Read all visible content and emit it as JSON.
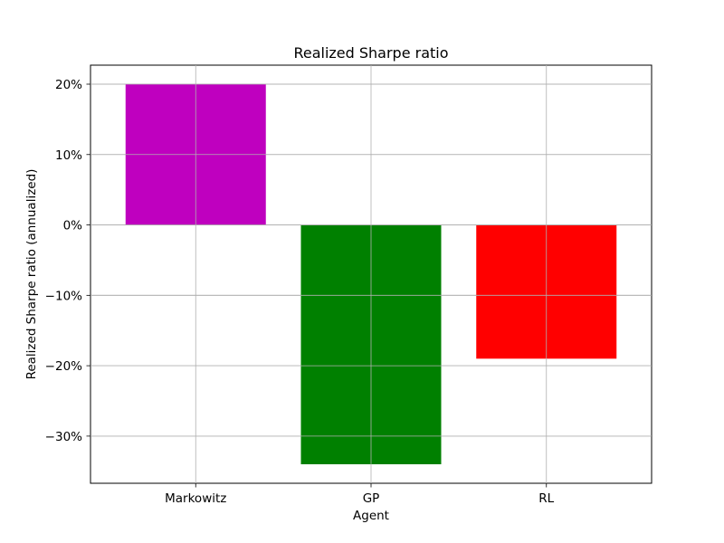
{
  "chart_data": {
    "type": "bar",
    "title": "Realized Sharpe ratio",
    "xlabel": "Agent",
    "ylabel": "Realized Sharpe ratio (annualized)",
    "categories": [
      "Markowitz",
      "GP",
      "RL"
    ],
    "values": [
      0.2,
      -0.34,
      -0.19
    ],
    "colors": [
      "#bf00bf",
      "#008000",
      "#ff0000"
    ],
    "ylim": [
      -0.367,
      0.227
    ],
    "yticks": [
      0.2,
      0.1,
      0.0,
      -0.1,
      -0.2,
      -0.3
    ],
    "ytick_labels": [
      "20%",
      "10%",
      "0%",
      "−10%",
      "−20%",
      "−30%"
    ],
    "grid": true,
    "legend": "none"
  }
}
